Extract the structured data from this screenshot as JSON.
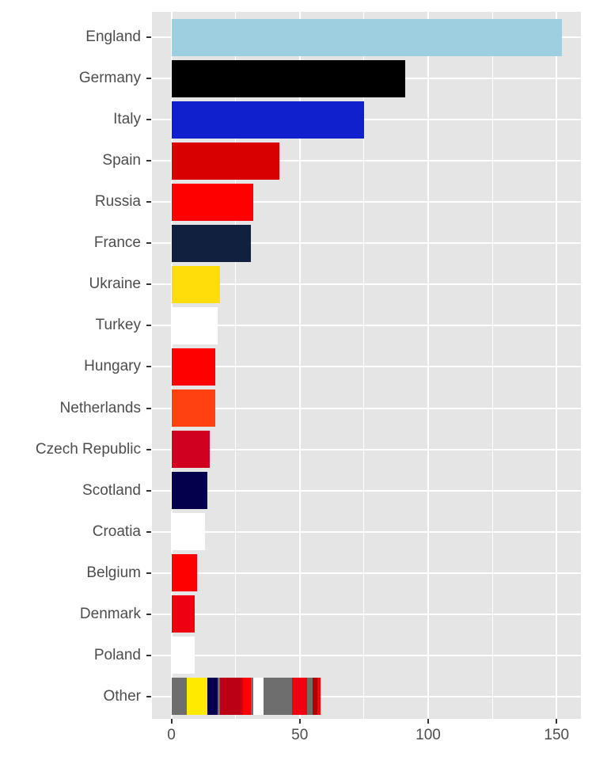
{
  "chart_data": {
    "type": "bar",
    "orientation": "horizontal",
    "title": "",
    "xlabel": "",
    "ylabel": "",
    "xlim": [
      -7.5,
      159.5
    ],
    "x_ticks": [
      0,
      50,
      100,
      150
    ],
    "x_tick_labels": [
      "0",
      "50",
      "100",
      "150"
    ],
    "grid": true,
    "legend": "none",
    "categories": [
      "England",
      "Germany",
      "Italy",
      "Spain",
      "Russia",
      "France",
      "Ukraine",
      "Turkey",
      "Hungary",
      "Netherlands",
      "Czech Republic",
      "Scotland",
      "Croatia",
      "Belgium",
      "Denmark",
      "Poland",
      "Other"
    ],
    "values": [
      152,
      91,
      75,
      42,
      32,
      31,
      19,
      18,
      17,
      17,
      15,
      14,
      13,
      10,
      9,
      9,
      58
    ],
    "colors": [
      "#9ecfe0",
      "#000000",
      "#1020cc",
      "#d80000",
      "#ff0000",
      "#12203f",
      "#ffdd0a",
      "#ffffff",
      "#ff0000",
      "#ff4010",
      "#d00020",
      "#04004c",
      "#ffffff",
      "#ff0000",
      "#ee0010",
      "#ffffff",
      "stacked"
    ],
    "other_segments": [
      {
        "start": 0,
        "end": 6,
        "color": "#6e6e6e"
      },
      {
        "start": 6,
        "end": 14,
        "color": "#ffea00"
      },
      {
        "start": 14,
        "end": 18,
        "color": "#04004c"
      },
      {
        "start": 18,
        "end": 19,
        "color": "#6e6e6e"
      },
      {
        "start": 19,
        "end": 27,
        "color": "#bb0016"
      },
      {
        "start": 27,
        "end": 28,
        "color": "#d00010"
      },
      {
        "start": 28,
        "end": 31,
        "color": "#ff0000"
      },
      {
        "start": 31,
        "end": 32,
        "color": "#6e6e6e"
      },
      {
        "start": 32,
        "end": 36,
        "color": "#ffffff"
      },
      {
        "start": 36,
        "end": 47,
        "color": "#6e6e6e"
      },
      {
        "start": 47,
        "end": 53,
        "color": "#f00010"
      },
      {
        "start": 53,
        "end": 55,
        "color": "#6e6e6e"
      },
      {
        "start": 55,
        "end": 57,
        "color": "#b00000"
      },
      {
        "start": 57,
        "end": 58,
        "color": "#ff0000"
      }
    ]
  }
}
